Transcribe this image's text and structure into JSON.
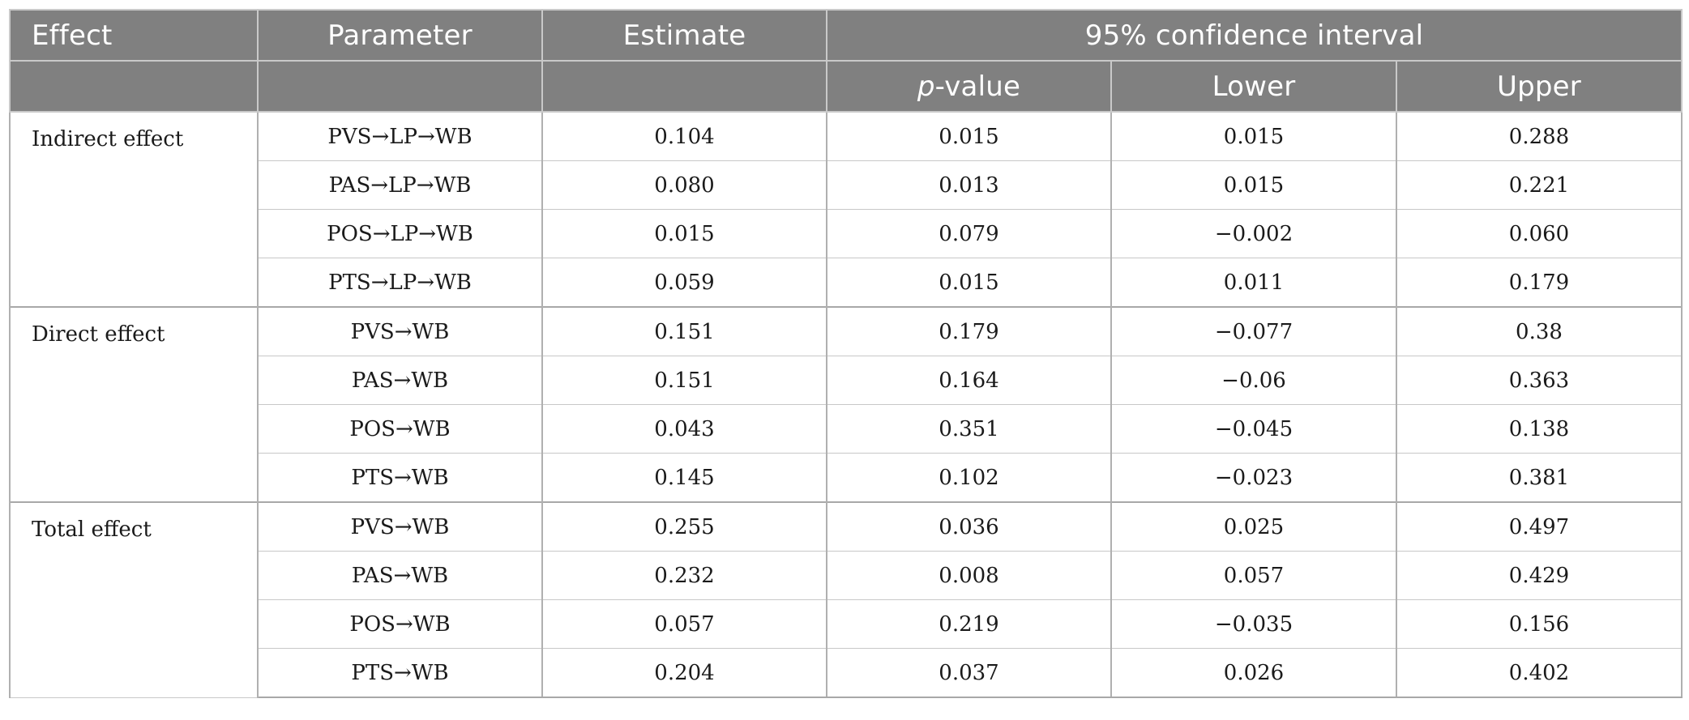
{
  "header": {
    "effect": "Effect",
    "parameter": "Parameter",
    "estimate": "Estimate",
    "ci": "95% confidence interval",
    "p_italic": "p",
    "p_rest": "-value",
    "lower": "Lower",
    "upper": "Upper"
  },
  "groups": [
    {
      "effect": "Indirect effect",
      "rows": [
        {
          "parameter": "PVS→LP→WB",
          "estimate": "0.104",
          "p": "0.015",
          "lower": "0.015",
          "upper": "0.288"
        },
        {
          "parameter": "PAS→LP→WB",
          "estimate": "0.080",
          "p": "0.013",
          "lower": "0.015",
          "upper": "0.221"
        },
        {
          "parameter": "POS→LP→WB",
          "estimate": "0.015",
          "p": "0.079",
          "lower": "−0.002",
          "upper": "0.060"
        },
        {
          "parameter": "PTS→LP→WB",
          "estimate": "0.059",
          "p": "0.015",
          "lower": "0.011",
          "upper": "0.179"
        }
      ]
    },
    {
      "effect": "Direct effect",
      "rows": [
        {
          "parameter": "PVS→WB",
          "estimate": "0.151",
          "p": "0.179",
          "lower": "−0.077",
          "upper": "0.38"
        },
        {
          "parameter": "PAS→WB",
          "estimate": "0.151",
          "p": "0.164",
          "lower": "−0.06",
          "upper": "0.363"
        },
        {
          "parameter": "POS→WB",
          "estimate": "0.043",
          "p": "0.351",
          "lower": "−0.045",
          "upper": "0.138"
        },
        {
          "parameter": "PTS→WB",
          "estimate": "0.145",
          "p": "0.102",
          "lower": "−0.023",
          "upper": "0.381"
        }
      ]
    },
    {
      "effect": "Total effect",
      "rows": [
        {
          "parameter": "PVS→WB",
          "estimate": "0.255",
          "p": "0.036",
          "lower": "0.025",
          "upper": "0.497"
        },
        {
          "parameter": "PAS→WB",
          "estimate": "0.232",
          "p": "0.008",
          "lower": "0.057",
          "upper": "0.429"
        },
        {
          "parameter": "POS→WB",
          "estimate": "0.057",
          "p": "0.219",
          "lower": "−0.035",
          "upper": "0.156"
        },
        {
          "parameter": "PTS→WB",
          "estimate": "0.204",
          "p": "0.037",
          "lower": "0.026",
          "upper": "0.402"
        }
      ]
    }
  ]
}
